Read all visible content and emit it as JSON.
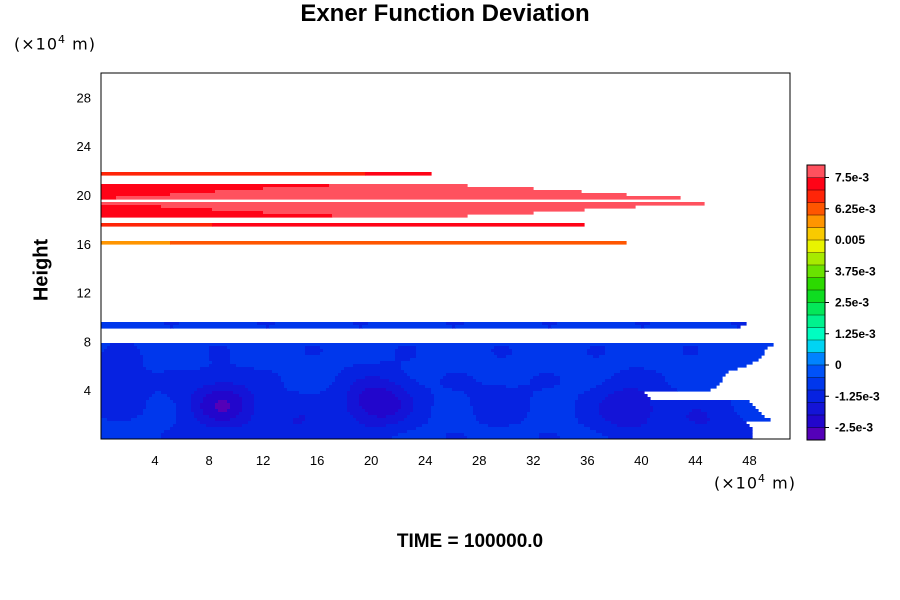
{
  "chart_data": {
    "type": "heatmap",
    "title": "Exner Function Deviation",
    "ylabel": "Height",
    "x_unit": {
      "prefix": "(×10",
      "exp": "4",
      "suffix": " m)"
    },
    "y_unit": {
      "prefix": "(×10",
      "exp": "4",
      "suffix": " m)"
    },
    "xlim": [
      0,
      51
    ],
    "ylim": [
      0,
      30
    ],
    "x_ticks": [
      4,
      8,
      12,
      16,
      20,
      24,
      28,
      32,
      36,
      40,
      44,
      48
    ],
    "y_ticks": [
      4,
      8,
      12,
      16,
      20,
      24,
      28
    ],
    "colorbar": {
      "min": -0.003,
      "max": 0.008,
      "levels": 22,
      "labels": [
        "7.5e-3",
        "6.25e-3",
        "0.005",
        "3.75e-3",
        "2.5e-3",
        "1.25e-3",
        "0",
        "-1.25e-3",
        "-2.5e-3"
      ],
      "label_values": [
        0.0075,
        0.00625,
        0.005,
        0.00375,
        0.0025,
        0.00125,
        0,
        -0.00125,
        -0.0025
      ]
    },
    "peak_band": {
      "height": 19.5,
      "value": 0.0075
    },
    "lows": [
      {
        "x": 9,
        "y": 2.8,
        "value": -0.0025
      },
      {
        "x": 20.5,
        "y": 3.0,
        "value": -0.0025
      },
      {
        "x": 39,
        "y": 2.5,
        "value": -0.002
      },
      {
        "x": 44.5,
        "y": 1.5,
        "value": -0.0015
      },
      {
        "x": 0.5,
        "y": 4.5,
        "value": -0.0015
      },
      {
        "x": 50.5,
        "y": 4.5,
        "value": -0.0015
      },
      {
        "x": 14.5,
        "y": 1.2,
        "value": -0.0015
      },
      {
        "x": 29.5,
        "y": 3.0,
        "value": -0.0012
      }
    ]
  },
  "footer": {
    "label": "TIME = 100000.0"
  }
}
